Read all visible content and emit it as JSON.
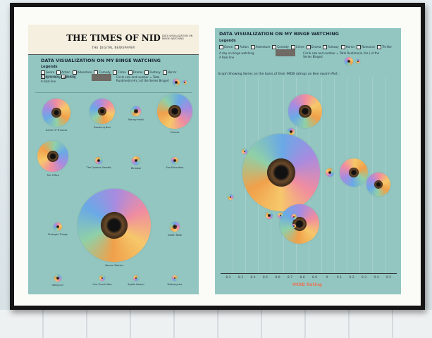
{
  "left_page": {
    "masthead_title": "THE TIMES OF NID",
    "masthead_subtitle": "THE DIGITAL NEWSPAPER",
    "masthead_note": "DATA VISUALIZATION ON BINGE WATCHING",
    "heading": "DATA VISUALIZATION ON MY BINGE WATCHING",
    "legend_title": "Legends",
    "genres": [
      "Genre",
      "Action",
      "Adventure",
      "Comedy",
      "Crime",
      "Drama",
      "Fantasy",
      "Horror",
      "Romance",
      "Thriller"
    ],
    "day_label": "A day on binge watching",
    "real_line": "A Real line",
    "size_note": "Circle size and number = Total Runtime(in Hrs.) of the Series Binged",
    "series": [
      "Game Of Thrones",
      "Breaking Bad",
      "Money Heist",
      "Friends",
      "The Office",
      "The Queens Gambit",
      "Dinoque",
      "Sex Education",
      "Stranger Things",
      "Narcos Mexico",
      "Death Note",
      "Haikyuu!!",
      "One Punch Man",
      "Apollo Kaisen",
      "Mob psycho"
    ]
  },
  "right_page": {
    "heading": "DATA VISUALIZATION ON MY BINGE WATCHING",
    "legend_title": "Legends",
    "genres": [
      "Genre",
      "Action",
      "Adventure",
      "Comedy",
      "Crime",
      "Drama",
      "Fantasy",
      "Horror",
      "Romance",
      "Thriller"
    ],
    "day_label": "A day on binge watching",
    "real_line": "A Real line",
    "size_note": "Circle size and number = Total Runtime(in Hrs.) of the Series Binged",
    "plot_title": "Graph Showing Series on the basis of their IMDB ratings on Bee swarm Plot :",
    "xticks": [
      "8.2",
      "8.3",
      "8.4",
      "8.5",
      "8.6",
      "8.7",
      "8.8",
      "8.9",
      "9",
      "9.1",
      "9.2",
      "9.3",
      "9.4",
      "9.5"
    ],
    "x_label": "IMDB Rating"
  }
}
